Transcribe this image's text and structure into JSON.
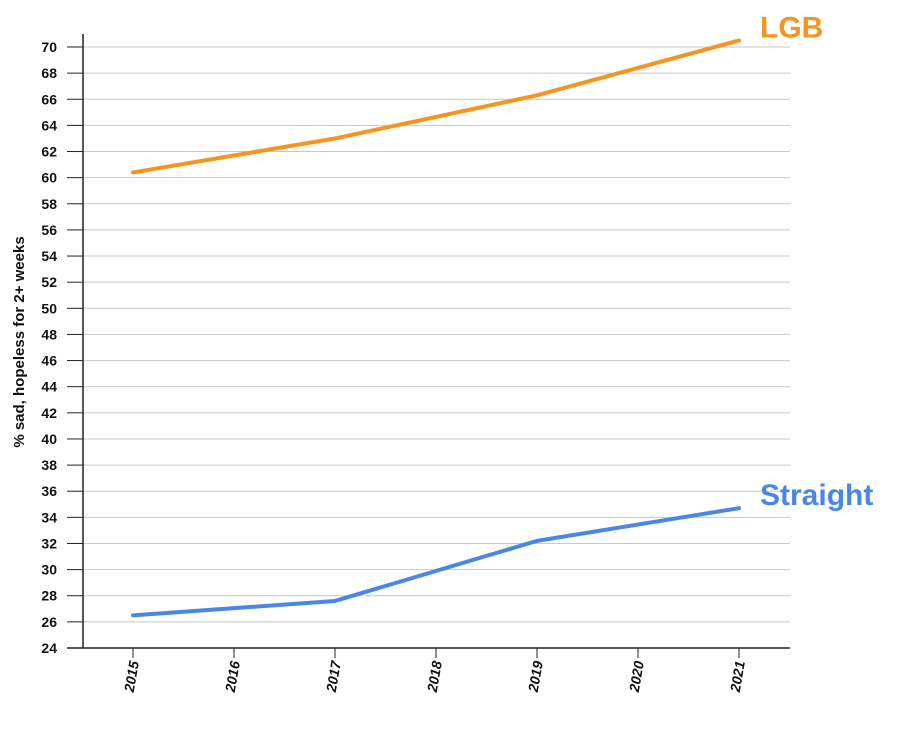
{
  "chart_data": {
    "type": "line",
    "title": "",
    "xlabel": "",
    "ylabel": "% sad, hopeless for 2+ weeks",
    "x": [
      "2015",
      "2016",
      "2017",
      "2018",
      "2019",
      "2020",
      "2021"
    ],
    "ylim": [
      24,
      70
    ],
    "yticks": [
      24,
      26,
      28,
      30,
      32,
      34,
      36,
      38,
      40,
      42,
      44,
      46,
      48,
      50,
      52,
      54,
      56,
      58,
      60,
      62,
      64,
      66,
      68,
      70
    ],
    "grid": true,
    "series": [
      {
        "name": "LGB",
        "values": [
          60.4,
          null,
          63.0,
          null,
          66.3,
          null,
          70.5
        ],
        "color": "#F7941D"
      },
      {
        "name": "Straight",
        "values": [
          26.5,
          null,
          27.6,
          null,
          32.2,
          null,
          34.7
        ],
        "color": "#4A86E8"
      }
    ]
  }
}
